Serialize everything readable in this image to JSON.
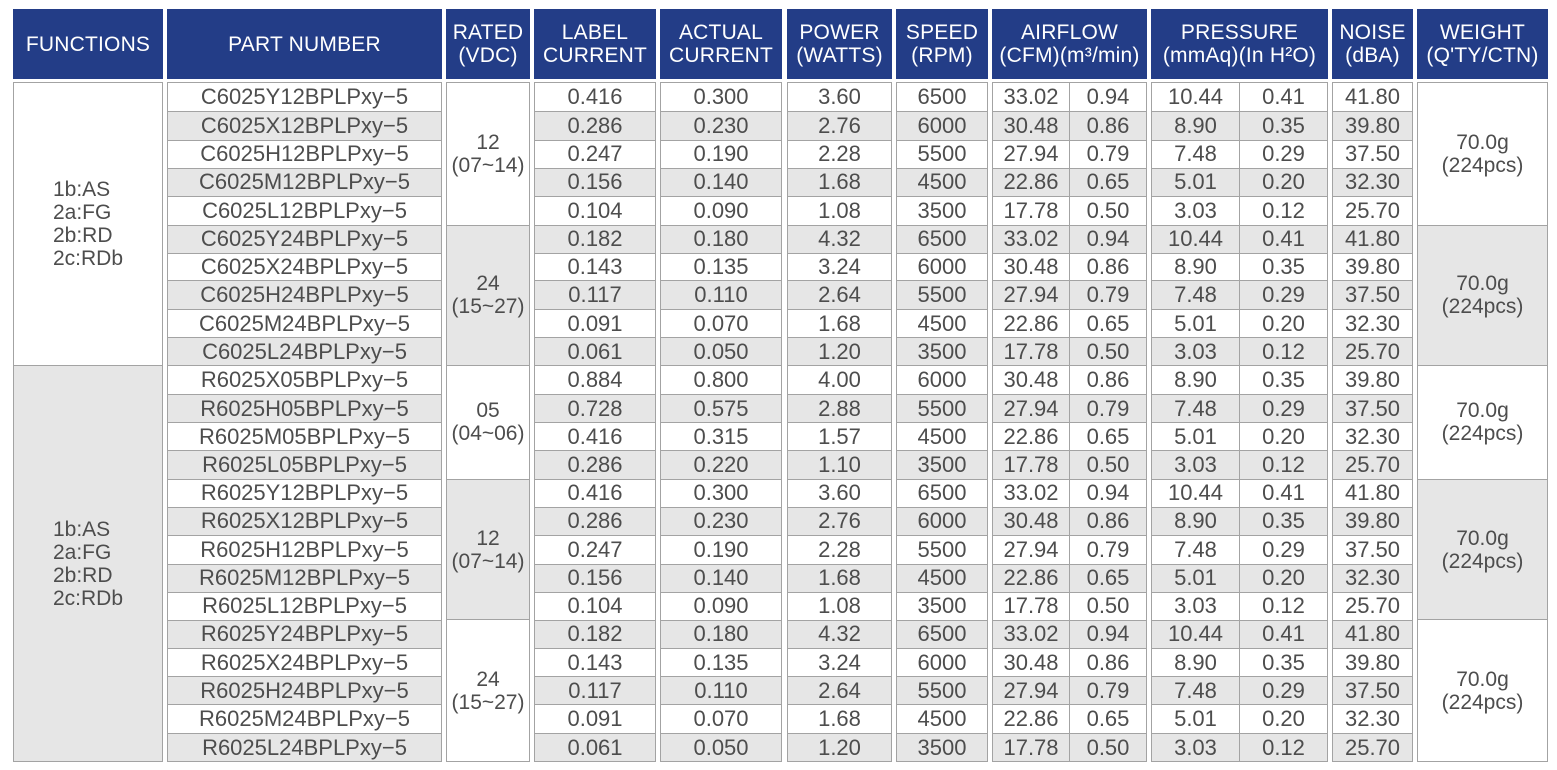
{
  "colors": {
    "header_bg": "#233d87",
    "header_text": "#ffffff",
    "row_stripe": "#e6e6e6",
    "grid_border": "#a3a3a3",
    "body_text": "#4d4d4d"
  },
  "table": {
    "columns": [
      {
        "id": "functions",
        "label_lines": [
          "FUNCTIONS"
        ]
      },
      {
        "id": "part_number",
        "label_lines": [
          "PART NUMBER"
        ]
      },
      {
        "id": "rated",
        "label_lines": [
          "RATED",
          "(VDC)"
        ]
      },
      {
        "id": "label_current",
        "label_lines": [
          "LABEL",
          "CURRENT"
        ]
      },
      {
        "id": "actual_current",
        "label_lines": [
          "ACTUAL",
          "CURRENT"
        ]
      },
      {
        "id": "power",
        "label_lines": [
          "POWER",
          "(WATTS)"
        ]
      },
      {
        "id": "speed",
        "label_lines": [
          "SPEED",
          "(RPM)"
        ]
      },
      {
        "id": "airflow",
        "label_lines": [
          "AIRFLOW",
          "(CFM)(m³/min)"
        ]
      },
      {
        "id": "pressure",
        "label_lines": [
          "PRESSURE",
          "(mmAq)(In H²O)"
        ]
      },
      {
        "id": "noise",
        "label_lines": [
          "NOISE",
          "(dBA)"
        ]
      },
      {
        "id": "weight",
        "label_lines": [
          "WEIGHT",
          "(Q'TY/CTN)"
        ]
      }
    ],
    "row_fields": [
      "part_number",
      "label_current",
      "actual_current",
      "power",
      "speed",
      "airflow_cfm",
      "airflow_m3min",
      "pressure_mmaq",
      "pressure_inh2o",
      "noise"
    ],
    "sections": [
      {
        "functions_lines": [
          "1b:AS",
          "2a:FG",
          "2b:RD",
          "2c:RDb"
        ],
        "blocks": [
          {
            "rated_lines": [
              "12",
              "(07~14)"
            ],
            "weight_lines": [
              "70.0g",
              "(224pcs)"
            ],
            "rows": [
              [
                "C6025Y12BPLPxy−5",
                "0.416",
                "0.300",
                "3.60",
                "6500",
                "33.02",
                "0.94",
                "10.44",
                "0.41",
                "41.80"
              ],
              [
                "C6025X12BPLPxy−5",
                "0.286",
                "0.230",
                "2.76",
                "6000",
                "30.48",
                "0.86",
                "8.90",
                "0.35",
                "39.80"
              ],
              [
                "C6025H12BPLPxy−5",
                "0.247",
                "0.190",
                "2.28",
                "5500",
                "27.94",
                "0.79",
                "7.48",
                "0.29",
                "37.50"
              ],
              [
                "C6025M12BPLPxy−5",
                "0.156",
                "0.140",
                "1.68",
                "4500",
                "22.86",
                "0.65",
                "5.01",
                "0.20",
                "32.30"
              ],
              [
                "C6025L12BPLPxy−5",
                "0.104",
                "0.090",
                "1.08",
                "3500",
                "17.78",
                "0.50",
                "3.03",
                "0.12",
                "25.70"
              ]
            ]
          },
          {
            "rated_lines": [
              "24",
              "(15~27)"
            ],
            "weight_lines": [
              "70.0g",
              "(224pcs)"
            ],
            "rows": [
              [
                "C6025Y24BPLPxy−5",
                "0.182",
                "0.180",
                "4.32",
                "6500",
                "33.02",
                "0.94",
                "10.44",
                "0.41",
                "41.80"
              ],
              [
                "C6025X24BPLPxy−5",
                "0.143",
                "0.135",
                "3.24",
                "6000",
                "30.48",
                "0.86",
                "8.90",
                "0.35",
                "39.80"
              ],
              [
                "C6025H24BPLPxy−5",
                "0.117",
                "0.110",
                "2.64",
                "5500",
                "27.94",
                "0.79",
                "7.48",
                "0.29",
                "37.50"
              ],
              [
                "C6025M24BPLPxy−5",
                "0.091",
                "0.070",
                "1.68",
                "4500",
                "22.86",
                "0.65",
                "5.01",
                "0.20",
                "32.30"
              ],
              [
                "C6025L24BPLPxy−5",
                "0.061",
                "0.050",
                "1.20",
                "3500",
                "17.78",
                "0.50",
                "3.03",
                "0.12",
                "25.70"
              ]
            ]
          }
        ]
      },
      {
        "functions_lines": [
          "1b:AS",
          "2a:FG",
          "2b:RD",
          "2c:RDb"
        ],
        "blocks": [
          {
            "rated_lines": [
              "05",
              "(04~06)"
            ],
            "weight_lines": [
              "70.0g",
              "(224pcs)"
            ],
            "rows": [
              [
                "R6025X05BPLPxy−5",
                "0.884",
                "0.800",
                "4.00",
                "6000",
                "30.48",
                "0.86",
                "8.90",
                "0.35",
                "39.80"
              ],
              [
                "R6025H05BPLPxy−5",
                "0.728",
                "0.575",
                "2.88",
                "5500",
                "27.94",
                "0.79",
                "7.48",
                "0.29",
                "37.50"
              ],
              [
                "R6025M05BPLPxy−5",
                "0.416",
                "0.315",
                "1.57",
                "4500",
                "22.86",
                "0.65",
                "5.01",
                "0.20",
                "32.30"
              ],
              [
                "R6025L05BPLPxy−5",
                "0.286",
                "0.220",
                "1.10",
                "3500",
                "17.78",
                "0.50",
                "3.03",
                "0.12",
                "25.70"
              ]
            ]
          },
          {
            "rated_lines": [
              "12",
              "(07~14)"
            ],
            "weight_lines": [
              "70.0g",
              "(224pcs)"
            ],
            "rows": [
              [
                "R6025Y12BPLPxy−5",
                "0.416",
                "0.300",
                "3.60",
                "6500",
                "33.02",
                "0.94",
                "10.44",
                "0.41",
                "41.80"
              ],
              [
                "R6025X12BPLPxy−5",
                "0.286",
                "0.230",
                "2.76",
                "6000",
                "30.48",
                "0.86",
                "8.90",
                "0.35",
                "39.80"
              ],
              [
                "R6025H12BPLPxy−5",
                "0.247",
                "0.190",
                "2.28",
                "5500",
                "27.94",
                "0.79",
                "7.48",
                "0.29",
                "37.50"
              ],
              [
                "R6025M12BPLPxy−5",
                "0.156",
                "0.140",
                "1.68",
                "4500",
                "22.86",
                "0.65",
                "5.01",
                "0.20",
                "32.30"
              ],
              [
                "R6025L12BPLPxy−5",
                "0.104",
                "0.090",
                "1.08",
                "3500",
                "17.78",
                "0.50",
                "3.03",
                "0.12",
                "25.70"
              ]
            ]
          },
          {
            "rated_lines": [
              "24",
              "(15~27)"
            ],
            "weight_lines": [
              "70.0g",
              "(224pcs)"
            ],
            "rows": [
              [
                "R6025Y24BPLPxy−5",
                "0.182",
                "0.180",
                "4.32",
                "6500",
                "33.02",
                "0.94",
                "10.44",
                "0.41",
                "41.80"
              ],
              [
                "R6025X24BPLPxy−5",
                "0.143",
                "0.135",
                "3.24",
                "6000",
                "30.48",
                "0.86",
                "8.90",
                "0.35",
                "39.80"
              ],
              [
                "R6025H24BPLPxy−5",
                "0.117",
                "0.110",
                "2.64",
                "5500",
                "27.94",
                "0.79",
                "7.48",
                "0.29",
                "37.50"
              ],
              [
                "R6025M24BPLPxy−5",
                "0.091",
                "0.070",
                "1.68",
                "4500",
                "22.86",
                "0.65",
                "5.01",
                "0.20",
                "32.30"
              ],
              [
                "R6025L24BPLPxy−5",
                "0.061",
                "0.050",
                "1.20",
                "3500",
                "17.78",
                "0.50",
                "3.03",
                "0.12",
                "25.70"
              ]
            ]
          }
        ]
      }
    ]
  }
}
